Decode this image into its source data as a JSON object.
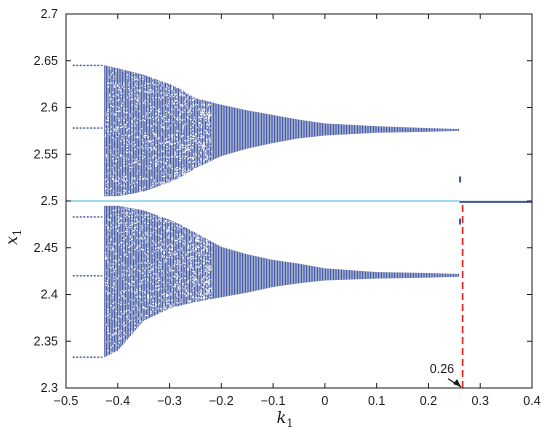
{
  "chart_data": {
    "type": "scatter",
    "title": "",
    "xlabel": "k",
    "xlabel_sub": "1",
    "ylabel": "x",
    "ylabel_sub": "1",
    "xlim": [
      -0.5,
      0.4
    ],
    "ylim": [
      2.3,
      2.7
    ],
    "xticks": [
      "-0.5",
      "-0.4",
      "-0.3",
      "-0.2",
      "-0.1",
      "0",
      "0.1",
      "0.2",
      "0.3",
      "0.4"
    ],
    "yticks": [
      "2.3",
      "2.35",
      "2.4",
      "2.45",
      "2.5",
      "2.55",
      "2.6",
      "2.65",
      "2.7"
    ],
    "grid": false,
    "series": [
      {
        "kind": "bifurcation-band",
        "color": "#3f55a0",
        "x_range": [
          -0.425,
          0.26
        ],
        "upper_branch_envelope": [
          {
            "x": -0.425,
            "min": 2.505,
            "max": 2.645
          },
          {
            "x": -0.4,
            "min": 2.505,
            "max": 2.642
          },
          {
            "x": -0.35,
            "min": 2.51,
            "max": 2.635
          },
          {
            "x": -0.3,
            "min": 2.52,
            "max": 2.625
          },
          {
            "x": -0.28,
            "min": 2.525,
            "max": 2.62
          },
          {
            "x": -0.25,
            "min": 2.535,
            "max": 2.61
          },
          {
            "x": -0.2,
            "min": 2.548,
            "max": 2.603
          },
          {
            "x": -0.15,
            "min": 2.556,
            "max": 2.597
          },
          {
            "x": -0.1,
            "min": 2.562,
            "max": 2.592
          },
          {
            "x": -0.05,
            "min": 2.567,
            "max": 2.587
          },
          {
            "x": 0,
            "min": 2.57,
            "max": 2.583
          },
          {
            "x": 0.1,
            "min": 2.573,
            "max": 2.58
          },
          {
            "x": 0.2,
            "min": 2.574,
            "max": 2.578
          },
          {
            "x": 0.26,
            "min": 2.575,
            "max": 2.577
          }
        ],
        "lower_branch_envelope": [
          {
            "x": -0.425,
            "min": 2.333,
            "max": 2.495
          },
          {
            "x": -0.4,
            "min": 2.34,
            "max": 2.495
          },
          {
            "x": -0.35,
            "min": 2.372,
            "max": 2.49
          },
          {
            "x": -0.3,
            "min": 2.385,
            "max": 2.48
          },
          {
            "x": -0.28,
            "min": 2.388,
            "max": 2.475
          },
          {
            "x": -0.25,
            "min": 2.392,
            "max": 2.466
          },
          {
            "x": -0.2,
            "min": 2.397,
            "max": 2.451
          },
          {
            "x": -0.15,
            "min": 2.402,
            "max": 2.443
          },
          {
            "x": -0.1,
            "min": 2.408,
            "max": 2.437
          },
          {
            "x": -0.05,
            "min": 2.412,
            "max": 2.433
          },
          {
            "x": 0,
            "min": 2.415,
            "max": 2.428
          },
          {
            "x": 0.1,
            "min": 2.417,
            "max": 2.424
          },
          {
            "x": 0.2,
            "min": 2.418,
            "max": 2.423
          },
          {
            "x": 0.26,
            "min": 2.419,
            "max": 2.422
          }
        ],
        "edge_points": [
          {
            "x": -0.43,
            "y": 2.645
          },
          {
            "x": -0.43,
            "y": 2.578
          },
          {
            "x": -0.43,
            "y": 2.483
          },
          {
            "x": -0.43,
            "y": 2.42
          },
          {
            "x": -0.43,
            "y": 2.333
          }
        ],
        "isolated_points": [
          {
            "x": 0.261,
            "y": 2.523
          },
          {
            "x": 0.261,
            "y": 2.478
          }
        ]
      },
      {
        "kind": "horizontal-line",
        "color": "#66c6e6",
        "y": 2.5,
        "x_range": [
          -0.5,
          0.26
        ]
      },
      {
        "kind": "fixed-point-branch",
        "color": "#3f55a0",
        "y": 2.499,
        "x_range": [
          0.26,
          0.4
        ]
      },
      {
        "kind": "vertical-dashed-line",
        "color": "#e01f1f",
        "x": 0.266,
        "y_range": [
          2.3,
          2.5
        ]
      }
    ],
    "annotations": [
      {
        "text": "0.26",
        "x": 0.23,
        "y": 2.312,
        "arrow_to": {
          "x": 0.265,
          "y": 2.3
        }
      }
    ]
  }
}
